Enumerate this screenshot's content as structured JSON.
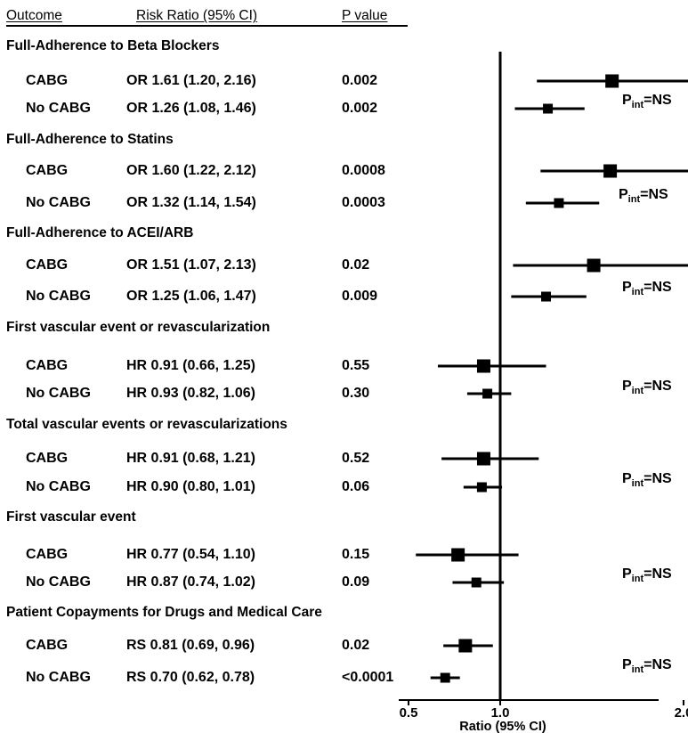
{
  "header": {
    "outcome": "Outcome",
    "risk_ratio": "Risk Ratio (95% CI)",
    "p_value": "P value"
  },
  "pint_label": {
    "main": "P",
    "sub": "int",
    "suffix": "=NS"
  },
  "chart_data": {
    "type": "forest",
    "xlabel": "Ratio (95% CI)",
    "x_ticks": [
      {
        "value": 0.5,
        "label": "0.5"
      },
      {
        "value": 1.0,
        "label": "1.0"
      },
      {
        "value": 2.0,
        "label": "2.0"
      }
    ],
    "xlim": [
      0.5,
      2.3
    ],
    "reference_line": 1.0,
    "groups": [
      {
        "title": "Full-Adherence to Beta Blockers",
        "interaction": "NS",
        "rows": [
          {
            "label": "CABG",
            "estimate_text": "OR 1.61 (1.20, 2.16)",
            "estimate": 1.61,
            "lower": 1.2,
            "upper": 2.16,
            "p": "0.002"
          },
          {
            "label": "No CABG",
            "estimate_text": "OR 1.26 (1.08, 1.46)",
            "estimate": 1.26,
            "lower": 1.08,
            "upper": 1.46,
            "p": "0.002"
          }
        ]
      },
      {
        "title": "Full-Adherence to Statins",
        "interaction": "NS",
        "rows": [
          {
            "label": "CABG",
            "estimate_text": "OR 1.60 (1.22, 2.12)",
            "estimate": 1.6,
            "lower": 1.22,
            "upper": 2.12,
            "p": "0.0008"
          },
          {
            "label": "No CABG",
            "estimate_text": "OR 1.32 (1.14, 1.54)",
            "estimate": 1.32,
            "lower": 1.14,
            "upper": 1.54,
            "p": "0.0003"
          }
        ]
      },
      {
        "title": "Full-Adherence to ACEI/ARB",
        "interaction": "NS",
        "rows": [
          {
            "label": "CABG",
            "estimate_text": "OR 1.51 (1.07, 2.13)",
            "estimate": 1.51,
            "lower": 1.07,
            "upper": 2.13,
            "p": "0.02"
          },
          {
            "label": "No CABG",
            "estimate_text": "OR 1.25 (1.06, 1.47)",
            "estimate": 1.25,
            "lower": 1.06,
            "upper": 1.47,
            "p": "0.009"
          }
        ]
      },
      {
        "title": "First vascular event or revascularization",
        "interaction": "NS",
        "rows": [
          {
            "label": "CABG",
            "estimate_text": "HR 0.91 (0.66, 1.25)",
            "estimate": 0.91,
            "lower": 0.66,
            "upper": 1.25,
            "p": "0.55"
          },
          {
            "label": "No CABG",
            "estimate_text": "HR 0.93 (0.82, 1.06)",
            "estimate": 0.93,
            "lower": 0.82,
            "upper": 1.06,
            "p": "0.30"
          }
        ]
      },
      {
        "title": "Total vascular events or revascularizations",
        "interaction": "NS",
        "rows": [
          {
            "label": "CABG",
            "estimate_text": "HR 0.91 (0.68, 1.21)",
            "estimate": 0.91,
            "lower": 0.68,
            "upper": 1.21,
            "p": "0.52"
          },
          {
            "label": "No CABG",
            "estimate_text": "HR 0.90 (0.80, 1.01)",
            "estimate": 0.9,
            "lower": 0.8,
            "upper": 1.01,
            "p": "0.06"
          }
        ]
      },
      {
        "title": "First vascular event",
        "interaction": "NS",
        "rows": [
          {
            "label": "CABG",
            "estimate_text": "HR 0.77 (0.54, 1.10)",
            "estimate": 0.77,
            "lower": 0.54,
            "upper": 1.1,
            "p": "0.15"
          },
          {
            "label": "No CABG",
            "estimate_text": "HR 0.87 (0.74, 1.02)",
            "estimate": 0.87,
            "lower": 0.74,
            "upper": 1.02,
            "p": "0.09"
          }
        ]
      },
      {
        "title": "Patient Copayments for Drugs and Medical Care",
        "interaction": "NS",
        "rows": [
          {
            "label": "CABG",
            "estimate_text": "RS 0.81 (0.69, 0.96)",
            "estimate": 0.81,
            "lower": 0.69,
            "upper": 0.96,
            "p": "0.02"
          },
          {
            "label": "No CABG",
            "estimate_text": "RS 0.70 (0.62, 0.78)",
            "estimate": 0.7,
            "lower": 0.62,
            "upper": 0.78,
            "p": "<0.0001"
          }
        ]
      }
    ]
  }
}
